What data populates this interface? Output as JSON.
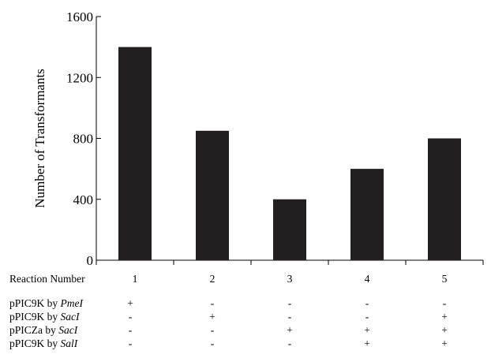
{
  "chart_data": {
    "type": "bar",
    "ylabel": "Number of Transformants",
    "ylim": [
      0,
      1600
    ],
    "yticks": [
      0,
      400,
      800,
      1200,
      1600
    ],
    "categories": [
      "1",
      "2",
      "3",
      "4",
      "5"
    ],
    "values": [
      1400,
      850,
      400,
      600,
      800
    ],
    "bar_color": "#231f20",
    "grid": false
  },
  "table": {
    "header_label": "Reaction Number",
    "rows": [
      {
        "prefix": "pPIC9K by ",
        "enzyme": "PmeI",
        "signs": [
          "+",
          "-",
          "-",
          "-",
          "-"
        ]
      },
      {
        "prefix": "pPIC9K by ",
        "enzyme": "SacI",
        "signs": [
          "-",
          "+",
          "-",
          "-",
          "+"
        ]
      },
      {
        "prefix": "pPICZa by ",
        "enzyme": "SacI",
        "signs": [
          "-",
          "-",
          "+",
          "+",
          "+"
        ]
      },
      {
        "prefix": "pPIC9K by ",
        "enzyme": "SalI",
        "signs": [
          "-",
          "-",
          "-",
          "+",
          "+"
        ]
      }
    ]
  }
}
